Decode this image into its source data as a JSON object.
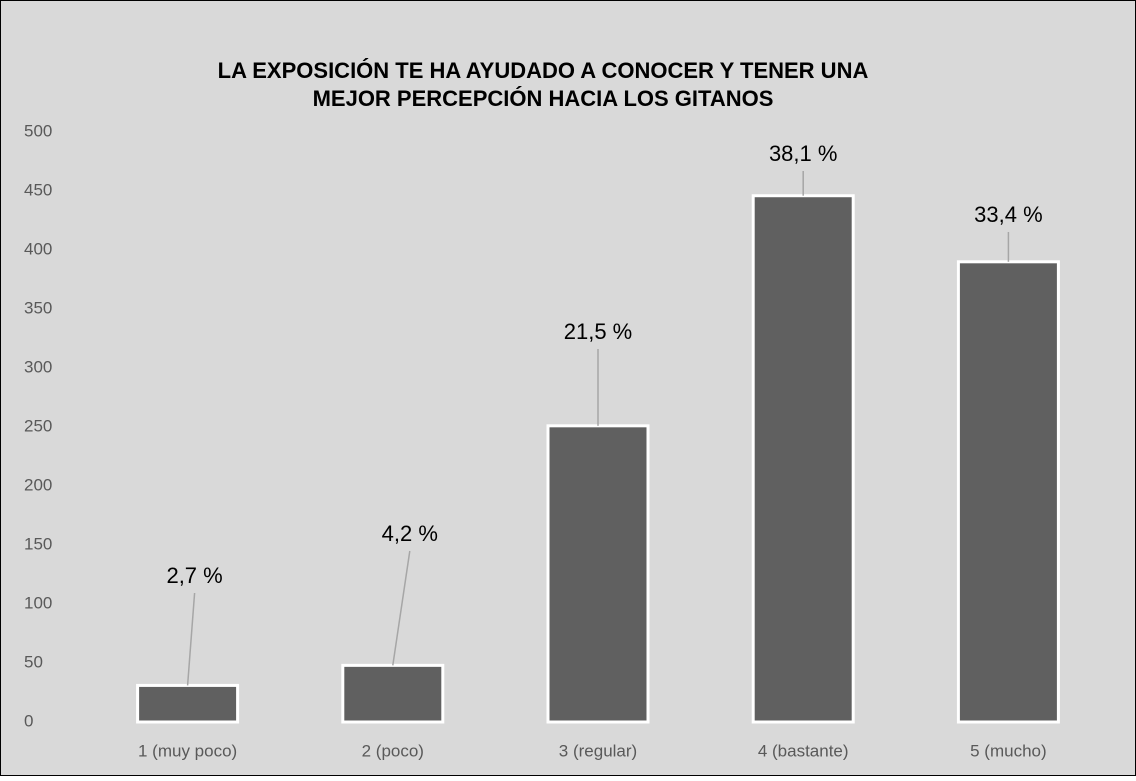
{
  "chart_data": {
    "type": "bar",
    "title": [
      "LA EXPOSICIÓN TE HA AYUDADO A CONOCER Y TENER UNA",
      "MEJOR PERCEPCIÓN HACIA LOS GITANOS"
    ],
    "categories": [
      "1 (muy poco)",
      "2 (poco)",
      "3 (regular)",
      "4 (bastante)",
      "5 (mucho)"
    ],
    "values": [
      31,
      48,
      251,
      446,
      390
    ],
    "percentages": [
      2.7,
      4.2,
      21.5,
      38.1,
      33.4
    ],
    "percent_labels": [
      "2,7 %",
      "4,2 %",
      "21,5 %",
      "38,1 %",
      "33,4 %"
    ],
    "color": "#606060",
    "ylim": [
      0,
      500
    ],
    "yticks": [
      0,
      50,
      100,
      150,
      200,
      250,
      300,
      350,
      400,
      450,
      500
    ],
    "grid": false
  }
}
